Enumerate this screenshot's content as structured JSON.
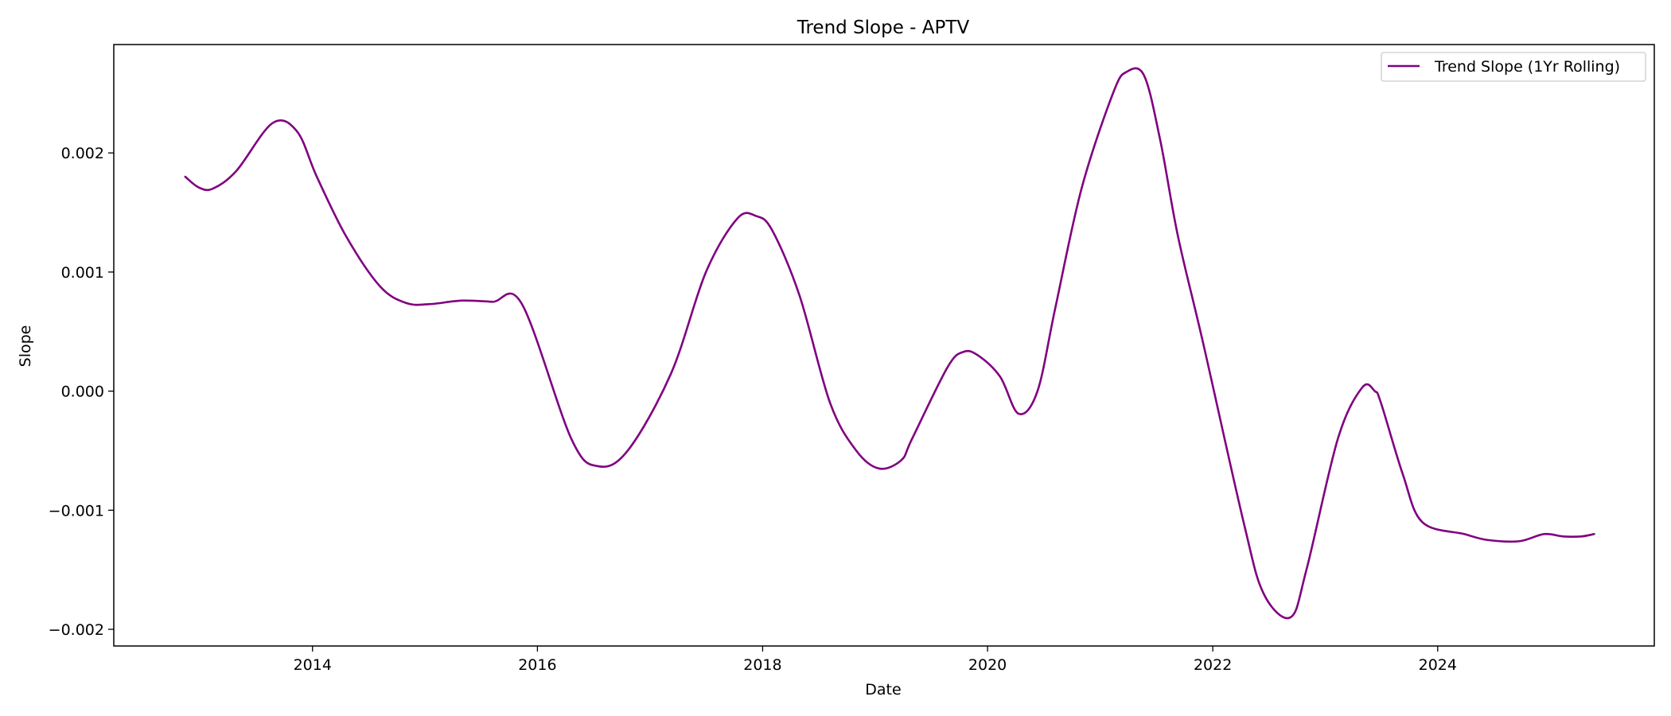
{
  "chart_data": {
    "type": "line",
    "title": "Trend Slope - APTV",
    "xlabel": "Date",
    "ylabel": "Slope",
    "xlim": [
      "2012-03-27",
      "2025-12-04"
    ],
    "ylim": [
      -0.00214,
      0.00291
    ],
    "x_ticks": [
      "2014",
      "2016",
      "2018",
      "2020",
      "2022",
      "2024"
    ],
    "y_ticks": [
      0.002,
      0.001,
      0.0,
      -0.001,
      -0.002
    ],
    "y_tick_labels": [
      "0.002",
      "0.001",
      "0.000",
      "−0.001",
      "−0.002"
    ],
    "grid": false,
    "legend_position": "top-right",
    "series": [
      {
        "name": "Trend Slope (1Yr Rolling)",
        "color": "#800080",
        "x": [
          "2012-11-14",
          "2012-12-28",
          "2013-02-11",
          "2013-04-29",
          "2013-08-24",
          "2013-11-12",
          "2014-01-15",
          "2014-04-20",
          "2014-08-08",
          "2014-11-01",
          "2015-01-14",
          "2015-05-01",
          "2015-08-08",
          "2015-11-12",
          "2016-04-20",
          "2016-07-15",
          "2016-10-20",
          "2017-03-10",
          "2017-07-01",
          "2017-10-11",
          "2017-12-11",
          "2018-02-01",
          "2018-05-01",
          "2018-08-08",
          "2018-11-01",
          "2019-01-14",
          "2019-03-27",
          "2019-05-01",
          "2019-08-24",
          "2019-10-15",
          "2019-12-01",
          "2020-02-11",
          "2020-04-11",
          "2020-06-11",
          "2020-08-08",
          "2020-11-01",
          "2021-02-11",
          "2021-03-27",
          "2021-05-23",
          "2021-07-15",
          "2021-09-10",
          "2021-12-01",
          "2022-04-11",
          "2022-06-15",
          "2022-09-10",
          "2022-11-01",
          "2023-02-11",
          "2023-05-01",
          "2023-06-11",
          "2023-07-01",
          "2023-09-10",
          "2023-11-12",
          "2024-03-27",
          "2024-06-11",
          "2024-09-22",
          "2024-12-11",
          "2025-02-11",
          "2025-04-11",
          "2025-05-23"
        ],
        "values": [
          0.0018,
          0.00171,
          0.0017,
          0.00185,
          0.00225,
          0.00218,
          0.0018,
          0.0013,
          0.00088,
          0.00074,
          0.00073,
          0.00076,
          0.00075,
          0.00073,
          -0.0004,
          -0.00063,
          -0.0005,
          0.00015,
          0.001,
          0.00145,
          0.00147,
          0.00135,
          0.0008,
          -0.0001,
          -0.0005,
          -0.00065,
          -0.00058,
          -0.0004,
          0.0002,
          0.00033,
          0.0003,
          0.00012,
          -0.00019,
          0.0,
          0.0007,
          0.0017,
          0.0025,
          0.00268,
          0.00265,
          0.0021,
          0.0013,
          0.0004,
          -0.0011,
          -0.0017,
          -0.0019,
          -0.0015,
          -0.0004,
          3e-05,
          0.0,
          -0.0001,
          -0.0007,
          -0.0011,
          -0.0012,
          -0.00125,
          -0.00126,
          -0.0012,
          -0.00122,
          -0.00122,
          -0.0012
        ]
      }
    ]
  }
}
